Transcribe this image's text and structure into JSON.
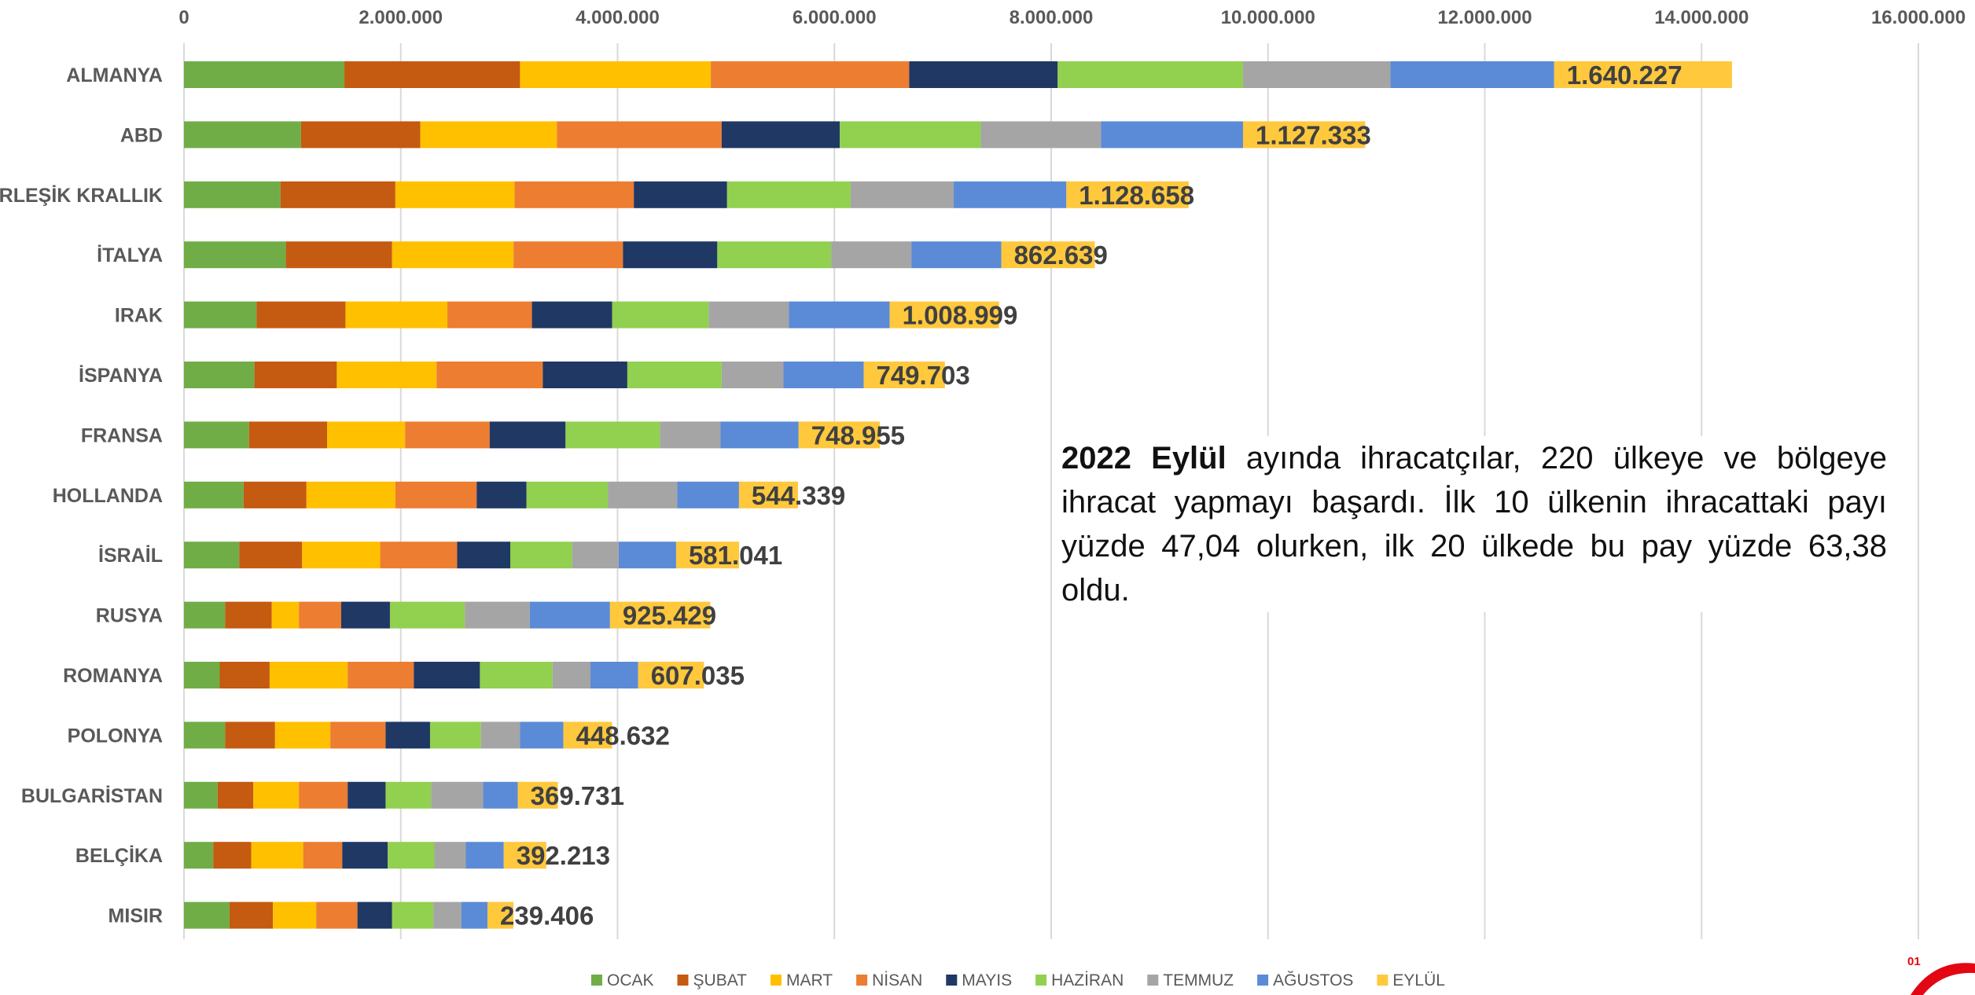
{
  "chart_data": {
    "type": "bar",
    "orientation": "horizontal",
    "stacked": true,
    "title": "",
    "xlabel": "",
    "ylabel": "",
    "xlim": [
      0,
      16000000
    ],
    "x_ticks": [
      "0",
      "2.000.000",
      "4.000.000",
      "6.000.000",
      "8.000.000",
      "10.000.000",
      "12.000.000",
      "14.000.000",
      "16.000.000"
    ],
    "x_tick_values": [
      0,
      2000000,
      4000000,
      6000000,
      8000000,
      10000000,
      12000000,
      14000000,
      16000000
    ],
    "grid": "vertical",
    "legend_position": "bottom",
    "categories": [
      "ALMANYA",
      "ABD",
      "BİRLEŞİK KRALLIK",
      "İTALYA",
      "IRAK",
      "İSPANYA",
      "FRANSA",
      "HOLLANDA",
      "İSRAİL",
      "RUSYA",
      "ROMANYA",
      "POLONYA",
      "BULGARİSTAN",
      "BELÇİKA",
      "MISIR"
    ],
    "series": [
      {
        "name": "OCAK",
        "color": "#70AD47",
        "values": [
          1480000,
          1080000,
          890000,
          940000,
          670000,
          650000,
          600000,
          550000,
          510000,
          380000,
          330000,
          380000,
          310000,
          270000,
          420000
        ]
      },
      {
        "name": "ŞUBAT",
        "color": "#C55A11",
        "values": [
          1620000,
          1100000,
          1060000,
          980000,
          820000,
          760000,
          720000,
          580000,
          580000,
          430000,
          460000,
          460000,
          330000,
          350000,
          400000
        ]
      },
      {
        "name": "MART",
        "color": "#FFC000",
        "values": [
          1760000,
          1260000,
          1100000,
          1120000,
          940000,
          920000,
          720000,
          820000,
          720000,
          250000,
          720000,
          510000,
          420000,
          480000,
          400000
        ]
      },
      {
        "name": "NİSAN",
        "color": "#ED7D31",
        "values": [
          1830000,
          1520000,
          1100000,
          1010000,
          780000,
          980000,
          780000,
          750000,
          710000,
          390000,
          610000,
          510000,
          450000,
          360000,
          380000
        ]
      },
      {
        "name": "MAYIS",
        "color": "#203864",
        "values": [
          1370000,
          1090000,
          860000,
          870000,
          740000,
          780000,
          700000,
          460000,
          490000,
          450000,
          610000,
          410000,
          350000,
          420000,
          320000
        ]
      },
      {
        "name": "HAZİRAN",
        "color": "#92D050",
        "values": [
          1710000,
          1300000,
          1140000,
          1050000,
          890000,
          870000,
          870000,
          750000,
          570000,
          690000,
          670000,
          470000,
          420000,
          430000,
          380000
        ]
      },
      {
        "name": "TEMMUZ",
        "color": "#A5A5A5",
        "values": [
          1360000,
          1110000,
          950000,
          740000,
          740000,
          570000,
          560000,
          640000,
          430000,
          600000,
          350000,
          360000,
          480000,
          290000,
          260000
        ]
      },
      {
        "name": "AĞUSTOS",
        "color": "#5B8BD6",
        "values": [
          1510000,
          1310000,
          1040000,
          830000,
          930000,
          740000,
          720000,
          570000,
          530000,
          740000,
          440000,
          400000,
          320000,
          350000,
          240000
        ]
      },
      {
        "name": "EYLÜL",
        "color": "#FFC83D",
        "values": [
          1640227,
          1127333,
          1128658,
          862639,
          1008999,
          749703,
          748955,
          544339,
          581041,
          925429,
          607035,
          448632,
          369731,
          392213,
          239406
        ]
      }
    ],
    "data_labels": [
      "1.640.227",
      "1.127.333",
      "1.128.658",
      "862.639",
      "1.008.999",
      "749.703",
      "748.955",
      "544.339",
      "581.041",
      "925.429",
      "607.035",
      "448.632",
      "369.731",
      "392.213",
      "239.406"
    ]
  },
  "note": {
    "bold": "2022 Eylül",
    "text": " ayında ihracatçılar, 220 ülkeye ve bölgeye ihracat yapmayı başardı. İlk 10 ülkenin ihracattaki payı yüzde 47,04 olurken, ilk 20 ülkede bu pay yüzde 63,38 oldu."
  },
  "corner": {
    "label": "01",
    "color": "#E30613"
  }
}
